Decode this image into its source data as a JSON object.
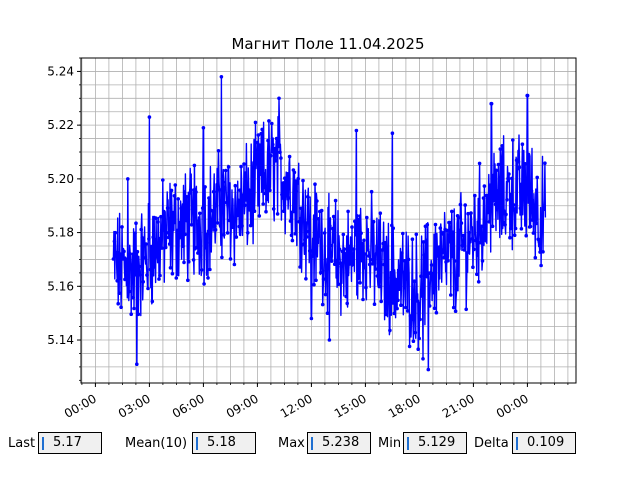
{
  "chart_data": {
    "type": "line",
    "title": "Магнит Поле 11.04.2025",
    "xlabel": "",
    "ylabel": "",
    "x_tick_labels": [
      "00:00",
      "03:00",
      "06:00",
      "09:00",
      "12:00",
      "15:00",
      "18:00",
      "21:00",
      "00:00"
    ],
    "x_ticks_hours": [
      0,
      3,
      6,
      9,
      12,
      15,
      18,
      21,
      24
    ],
    "xlim_hours": [
      -0.8,
      26.7
    ],
    "y_tick_labels": [
      "5.14",
      "5.16",
      "5.18",
      "5.20",
      "5.22",
      "5.24"
    ],
    "y_ticks": [
      5.14,
      5.16,
      5.18,
      5.2,
      5.22,
      5.24
    ],
    "ylim": [
      5.124,
      5.245
    ],
    "grid": true,
    "series": [
      {
        "color": "#0000ff",
        "marker": "circle",
        "x_hours_start": 1.0,
        "x_hours_end": 25.0,
        "trend": [
          [
            1.0,
            5.168
          ],
          [
            2.0,
            5.165
          ],
          [
            3.0,
            5.172
          ],
          [
            4.0,
            5.18
          ],
          [
            5.0,
            5.183
          ],
          [
            6.0,
            5.183
          ],
          [
            7.0,
            5.19
          ],
          [
            8.0,
            5.188
          ],
          [
            9.0,
            5.198
          ],
          [
            10.0,
            5.205
          ],
          [
            11.0,
            5.196
          ],
          [
            12.0,
            5.18
          ],
          [
            13.0,
            5.173
          ],
          [
            14.0,
            5.168
          ],
          [
            15.0,
            5.176
          ],
          [
            16.0,
            5.165
          ],
          [
            17.0,
            5.162
          ],
          [
            18.0,
            5.158
          ],
          [
            19.0,
            5.17
          ],
          [
            20.0,
            5.17
          ],
          [
            21.0,
            5.18
          ],
          [
            22.0,
            5.19
          ],
          [
            23.0,
            5.195
          ],
          [
            24.0,
            5.195
          ],
          [
            25.0,
            5.185
          ]
        ],
        "spikes": [
          [
            7.0,
            5.238
          ],
          [
            10.2,
            5.23
          ],
          [
            24.0,
            5.231
          ],
          [
            1.8,
            5.2
          ],
          [
            3.0,
            5.223
          ],
          [
            5.5,
            5.205
          ],
          [
            18.5,
            5.129
          ],
          [
            18.2,
            5.133
          ],
          [
            13.0,
            5.14
          ],
          [
            2.3,
            5.131
          ],
          [
            12.0,
            5.148
          ],
          [
            22.0,
            5.228
          ],
          [
            16.5,
            5.217
          ],
          [
            14.5,
            5.218
          ],
          [
            6.0,
            5.219
          ]
        ]
      }
    ]
  },
  "stats": [
    {
      "label": "Last",
      "value": "5.17"
    },
    {
      "label": "Mean(10)",
      "value": "5.18"
    },
    {
      "label": "Max",
      "value": "5.238"
    },
    {
      "label": "Min",
      "value": "5.129"
    },
    {
      "label": "Delta",
      "value": "0.109"
    }
  ]
}
